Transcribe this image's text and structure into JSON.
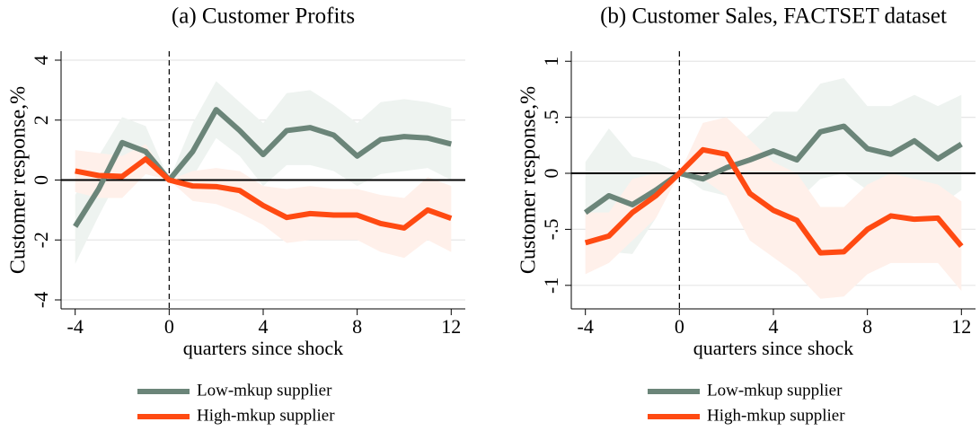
{
  "chart_data": [
    {
      "type": "line",
      "title": "(a) Customer Profits",
      "xlabel": "quarters since shock",
      "ylabel": "Customer response,%",
      "x": [
        -4,
        -3,
        -2,
        -1,
        0,
        1,
        2,
        3,
        4,
        5,
        6,
        7,
        8,
        9,
        10,
        11,
        12
      ],
      "xlim": [
        -4.6,
        12.6
      ],
      "xticks": [
        -4,
        0,
        4,
        8,
        12
      ],
      "ylim": [
        -4.3,
        4.3
      ],
      "yticks": [
        -4,
        -2,
        0,
        2,
        4
      ],
      "grid": true,
      "hline": 0,
      "vline": 0,
      "series": [
        {
          "name": "Low-mkup supplier",
          "color": "#6b8579",
          "band_color": "#eef3f0",
          "values": [
            -1.55,
            -0.3,
            1.25,
            0.95,
            0,
            0.95,
            2.35,
            1.65,
            0.85,
            1.65,
            1.75,
            1.5,
            0.8,
            1.35,
            1.45,
            1.4,
            1.2
          ],
          "upper": [
            -0.5,
            0.8,
            2.1,
            1.8,
            0,
            1.9,
            3.3,
            2.6,
            1.9,
            2.9,
            3.0,
            2.5,
            1.9,
            2.6,
            2.7,
            2.6,
            2.4
          ],
          "lower": [
            -2.8,
            -1.2,
            0.3,
            0.2,
            0,
            0.1,
            1.4,
            0.8,
            -0.2,
            0.5,
            0.5,
            0.3,
            -0.2,
            0.2,
            0.3,
            0.4,
            0
          ]
        },
        {
          "name": "High-mkup supplier",
          "color": "#ff4a12",
          "band_color": "#fff0ea",
          "values": [
            0.3,
            0.15,
            0.12,
            0.7,
            0,
            -0.2,
            -0.22,
            -0.35,
            -0.85,
            -1.25,
            -1.12,
            -1.17,
            -1.17,
            -1.45,
            -1.6,
            -1.0,
            -1.28
          ],
          "upper": [
            1.0,
            0.9,
            0.8,
            1.2,
            0,
            0.3,
            0.4,
            0.3,
            -0.2,
            -0.3,
            -0.2,
            -0.3,
            -0.3,
            -0.5,
            -0.6,
            0.1,
            -0.2
          ],
          "lower": [
            -0.4,
            -0.6,
            -0.6,
            0.2,
            0,
            -0.7,
            -0.8,
            -1.1,
            -1.5,
            -2.1,
            -2.0,
            -2.0,
            -2.0,
            -2.4,
            -2.6,
            -2.0,
            -2.4
          ]
        }
      ]
    },
    {
      "type": "line",
      "title": "(b) Customer Sales, FACTSET dataset",
      "xlabel": "quarters since shock",
      "ylabel": "Customer response,%",
      "x": [
        -4,
        -3,
        -2,
        -1,
        0,
        1,
        2,
        3,
        4,
        5,
        6,
        7,
        8,
        9,
        10,
        11,
        12
      ],
      "xlim": [
        -4.6,
        12.6
      ],
      "xticks": [
        -4,
        0,
        4,
        8,
        12
      ],
      "ylim": [
        -1.21,
        1.09
      ],
      "yticks": [
        -1,
        {
          "value": -0.5,
          "label": "-.5"
        },
        0,
        {
          "value": 0.5,
          "label": ".5"
        },
        1
      ],
      "grid": true,
      "hline": 0,
      "vline": 0,
      "series": [
        {
          "name": "Low-mkup supplier",
          "color": "#6b8579",
          "band_color": "#eef3f0",
          "values": [
            -0.35,
            -0.2,
            -0.28,
            -0.15,
            0,
            -0.05,
            0.05,
            0.12,
            0.2,
            0.12,
            0.37,
            0.42,
            0.22,
            0.17,
            0.29,
            0.13,
            0.26
          ],
          "upper": [
            0.1,
            0.4,
            0.15,
            0.1,
            0,
            0.1,
            0.2,
            0.35,
            0.55,
            0.55,
            0.8,
            0.85,
            0.6,
            0.6,
            0.7,
            0.6,
            0.7
          ],
          "lower": [
            -0.85,
            -0.7,
            -0.72,
            -0.4,
            0,
            -0.15,
            -0.2,
            -0.15,
            -0.15,
            -0.25,
            -0.05,
            0,
            -0.15,
            -0.2,
            -0.1,
            -0.3,
            -0.15
          ]
        },
        {
          "name": "High-mkup supplier",
          "color": "#ff4a12",
          "band_color": "#fff0ea",
          "values": [
            -0.62,
            -0.56,
            -0.35,
            -0.2,
            0,
            0.21,
            0.17,
            -0.18,
            -0.33,
            -0.42,
            -0.71,
            -0.7,
            -0.5,
            -0.38,
            -0.41,
            -0.4,
            -0.65
          ],
          "upper": [
            -0.35,
            -0.35,
            -0.05,
            0,
            0,
            0.45,
            0.5,
            0.3,
            0.1,
            0.0,
            -0.3,
            -0.3,
            -0.1,
            0.0,
            -0.05,
            -0.1,
            -0.25
          ],
          "lower": [
            -0.9,
            -0.8,
            -0.6,
            -0.4,
            0,
            -0.05,
            -0.2,
            -0.6,
            -0.75,
            -0.9,
            -1.12,
            -1.1,
            -0.9,
            -0.8,
            -0.8,
            -0.8,
            -1.05
          ]
        }
      ]
    }
  ]
}
